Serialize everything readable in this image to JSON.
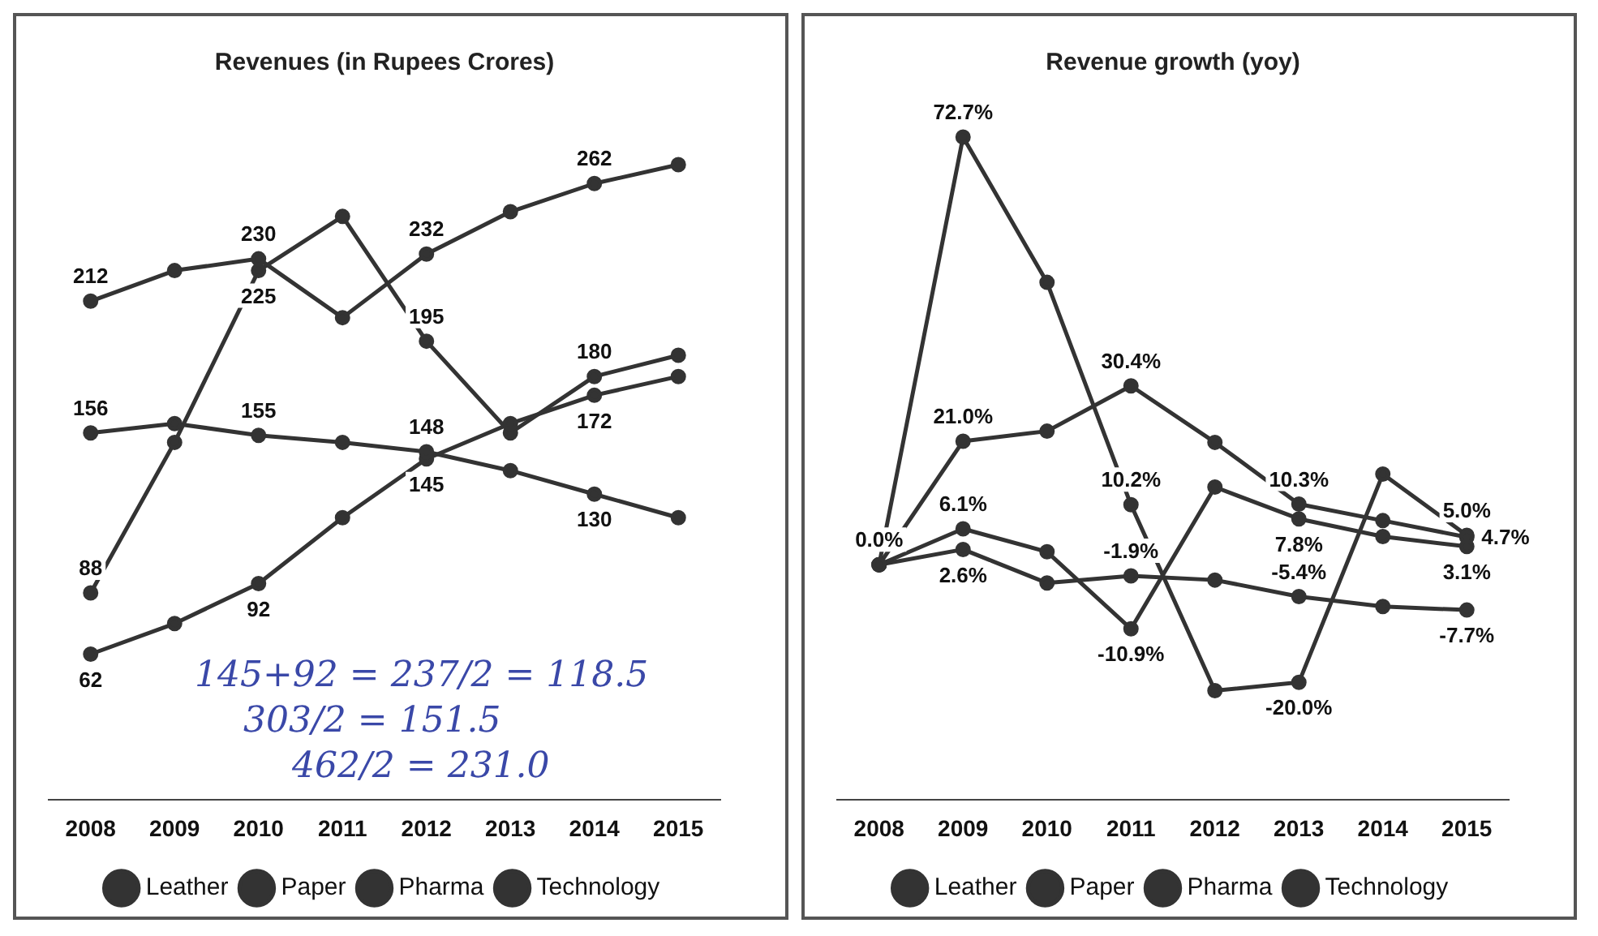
{
  "chart_data": [
    {
      "type": "line",
      "title": "Revenues (in Rupees Crores)",
      "categories": [
        "2008",
        "2009",
        "2010",
        "2011",
        "2012",
        "2013",
        "2014",
        "2015"
      ],
      "marker": "circle",
      "legend": "bottom",
      "grid": false,
      "tick_labels": "x",
      "series": [
        {
          "name": "Leather",
          "color": "#333333",
          "values": [
            212,
            225,
            230,
            205,
            232,
            250,
            262,
            270
          ],
          "value_labels": [
            "212",
            null,
            "230",
            null,
            "232",
            null,
            "262",
            null
          ]
        },
        {
          "name": "Paper",
          "color": "#333333",
          "values": [
            156,
            160,
            155,
            152,
            148,
            140,
            130,
            120
          ],
          "value_labels": [
            "156",
            null,
            "155",
            null,
            "148",
            null,
            "130",
            null
          ]
        },
        {
          "name": "Pharma",
          "color": "#333333",
          "values": [
            62,
            75,
            92,
            120,
            145,
            160,
            172,
            180
          ],
          "value_labels": [
            "62",
            null,
            "92",
            null,
            "145",
            null,
            "172",
            null
          ]
        },
        {
          "name": "Technology",
          "color": "#333333",
          "values": [
            88,
            152,
            225,
            248,
            195,
            156,
            180,
            189
          ],
          "value_labels": [
            "88",
            null,
            "225",
            null,
            "195",
            null,
            "180",
            null
          ]
        }
      ],
      "annotations": [
        "145+92 = 237/2 = 118.5",
        "303/2 = 151.5",
        "462/2 = 231.0"
      ]
    },
    {
      "type": "line",
      "title": "Revenue growth (yoy)",
      "categories": [
        "2008",
        "2009",
        "2010",
        "2011",
        "2012",
        "2013",
        "2014",
        "2015"
      ],
      "marker": "circle",
      "legend": "bottom",
      "grid": false,
      "tick_labels": "x",
      "series": [
        {
          "name": "Leather",
          "color": "#333333",
          "values": [
            0,
            6.1,
            2.2,
            -10.9,
            13.2,
            7.8,
            4.8,
            3.1
          ],
          "value_labels": [
            "0.0%",
            "6.1%",
            null,
            "-10.9%",
            null,
            "7.8%",
            null,
            "3.1%"
          ]
        },
        {
          "name": "Paper",
          "color": "#333333",
          "values": [
            0,
            2.6,
            -3.1,
            -1.9,
            -2.6,
            -5.4,
            -7.1,
            -7.7
          ],
          "value_labels": [
            null,
            "2.6%",
            null,
            "-1.9%",
            null,
            "-5.4%",
            null,
            "-7.7%"
          ]
        },
        {
          "name": "Pharma",
          "color": "#333333",
          "values": [
            0,
            21.0,
            22.7,
            30.4,
            20.8,
            10.3,
            7.5,
            4.7
          ],
          "value_labels": [
            null,
            "21.0%",
            null,
            "30.4%",
            null,
            "10.3%",
            null,
            "4.7%"
          ]
        },
        {
          "name": "Technology",
          "color": "#333333",
          "values": [
            0,
            72.7,
            48.0,
            10.2,
            -21.4,
            -20.0,
            15.4,
            5.0
          ],
          "value_labels": [
            null,
            "72.7%",
            null,
            "10.2%",
            null,
            "-20.0%",
            null,
            "5.0%"
          ]
        }
      ]
    }
  ]
}
